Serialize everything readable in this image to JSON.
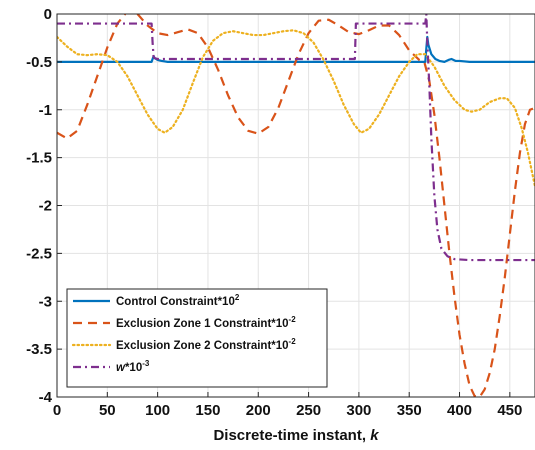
{
  "chart_data": {
    "type": "line",
    "title": "",
    "xlabel_main": "Discrete-time instant, ",
    "xlabel_var": "k",
    "ylabel": "",
    "xlim": [
      0,
      475
    ],
    "ylim": [
      -4,
      0
    ],
    "xticks": [
      0,
      50,
      100,
      150,
      200,
      250,
      300,
      350,
      400,
      450
    ],
    "yticks": [
      0,
      -0.5,
      -1,
      -1.5,
      -2,
      -2.5,
      -3,
      -3.5,
      -4
    ],
    "ytick_labels": [
      "0",
      "-0.5",
      "-1",
      "-1.5",
      "-2",
      "-2.5",
      "-3",
      "-3.5",
      "-4"
    ],
    "grid": true,
    "legend_position": "bottom-left",
    "series": [
      {
        "key": "control",
        "name_main": "Control Constraint*10",
        "name_sup": "2",
        "name_italic": "",
        "color": "#0072BD",
        "style": "solid",
        "points": [
          [
            0,
            -0.5
          ],
          [
            94,
            -0.5
          ],
          [
            95,
            -0.47
          ],
          [
            96,
            -0.44
          ],
          [
            97,
            -0.46
          ],
          [
            100,
            -0.48
          ],
          [
            104,
            -0.49
          ],
          [
            110,
            -0.5
          ],
          [
            366,
            -0.5
          ],
          [
            367,
            -0.36
          ],
          [
            368,
            -0.24
          ],
          [
            369,
            -0.32
          ],
          [
            372,
            -0.42
          ],
          [
            376,
            -0.47
          ],
          [
            380,
            -0.49
          ],
          [
            385,
            -0.5
          ],
          [
            389,
            -0.48
          ],
          [
            392,
            -0.47
          ],
          [
            396,
            -0.49
          ],
          [
            400,
            -0.49
          ],
          [
            410,
            -0.5
          ],
          [
            475,
            -0.5
          ]
        ]
      },
      {
        "key": "exclusion1",
        "name_main": "Exclusion Zone 1 Constraint*10",
        "name_sup": "-2",
        "name_italic": "",
        "color": "#D95319",
        "style": "dashed",
        "points": [
          [
            0,
            -1.24
          ],
          [
            10,
            -1.3
          ],
          [
            20,
            -1.22
          ],
          [
            30,
            -0.95
          ],
          [
            40,
            -0.65
          ],
          [
            50,
            -0.35
          ],
          [
            60,
            -0.1
          ],
          [
            70,
            0.03
          ],
          [
            80,
            0.0
          ],
          [
            90,
            -0.12
          ],
          [
            100,
            -0.2
          ],
          [
            110,
            -0.22
          ],
          [
            120,
            -0.19
          ],
          [
            130,
            -0.16
          ],
          [
            140,
            -0.2
          ],
          [
            150,
            -0.35
          ],
          [
            160,
            -0.58
          ],
          [
            170,
            -0.85
          ],
          [
            180,
            -1.08
          ],
          [
            190,
            -1.22
          ],
          [
            200,
            -1.25
          ],
          [
            210,
            -1.18
          ],
          [
            220,
            -0.98
          ],
          [
            230,
            -0.7
          ],
          [
            240,
            -0.42
          ],
          [
            250,
            -0.2
          ],
          [
            260,
            -0.07
          ],
          [
            270,
            -0.06
          ],
          [
            280,
            -0.12
          ],
          [
            290,
            -0.19
          ],
          [
            300,
            -0.21
          ],
          [
            310,
            -0.17
          ],
          [
            320,
            -0.12
          ],
          [
            330,
            -0.12
          ],
          [
            340,
            -0.22
          ],
          [
            350,
            -0.38
          ],
          [
            360,
            -0.48
          ],
          [
            365,
            -0.5
          ],
          [
            370,
            -0.7
          ],
          [
            375,
            -1.05
          ],
          [
            380,
            -1.5
          ],
          [
            385,
            -2.0
          ],
          [
            390,
            -2.5
          ],
          [
            395,
            -2.95
          ],
          [
            400,
            -3.35
          ],
          [
            405,
            -3.65
          ],
          [
            410,
            -3.88
          ],
          [
            415,
            -3.99
          ],
          [
            420,
            -4.0
          ],
          [
            425,
            -3.92
          ],
          [
            430,
            -3.75
          ],
          [
            435,
            -3.5
          ],
          [
            440,
            -3.15
          ],
          [
            445,
            -2.75
          ],
          [
            450,
            -2.3
          ],
          [
            455,
            -1.85
          ],
          [
            460,
            -1.45
          ],
          [
            465,
            -1.15
          ],
          [
            470,
            -1.0
          ],
          [
            475,
            -0.98
          ]
        ]
      },
      {
        "key": "exclusion2",
        "name_main": "Exclusion Zone 2 Constraint*10",
        "name_sup": "-2",
        "name_italic": "",
        "color": "#EDB120",
        "style": "dotted",
        "points": [
          [
            0,
            -0.24
          ],
          [
            10,
            -0.34
          ],
          [
            20,
            -0.42
          ],
          [
            30,
            -0.43
          ],
          [
            40,
            -0.42
          ],
          [
            50,
            -0.43
          ],
          [
            60,
            -0.5
          ],
          [
            70,
            -0.65
          ],
          [
            80,
            -0.85
          ],
          [
            90,
            -1.05
          ],
          [
            100,
            -1.2
          ],
          [
            107,
            -1.24
          ],
          [
            115,
            -1.18
          ],
          [
            125,
            -1.0
          ],
          [
            135,
            -0.72
          ],
          [
            145,
            -0.45
          ],
          [
            155,
            -0.28
          ],
          [
            165,
            -0.2
          ],
          [
            175,
            -0.18
          ],
          [
            185,
            -0.2
          ],
          [
            195,
            -0.22
          ],
          [
            205,
            -0.22
          ],
          [
            215,
            -0.2
          ],
          [
            225,
            -0.18
          ],
          [
            235,
            -0.17
          ],
          [
            245,
            -0.2
          ],
          [
            255,
            -0.3
          ],
          [
            265,
            -0.48
          ],
          [
            275,
            -0.7
          ],
          [
            285,
            -0.95
          ],
          [
            295,
            -1.15
          ],
          [
            302,
            -1.24
          ],
          [
            310,
            -1.2
          ],
          [
            320,
            -1.05
          ],
          [
            330,
            -0.85
          ],
          [
            340,
            -0.65
          ],
          [
            350,
            -0.5
          ],
          [
            358,
            -0.42
          ],
          [
            366,
            -0.42
          ],
          [
            375,
            -0.55
          ],
          [
            385,
            -0.75
          ],
          [
            395,
            -0.9
          ],
          [
            405,
            -1.0
          ],
          [
            412,
            -1.02
          ],
          [
            420,
            -1.0
          ],
          [
            430,
            -0.92
          ],
          [
            440,
            -0.88
          ],
          [
            447,
            -0.88
          ],
          [
            455,
            -0.98
          ],
          [
            462,
            -1.2
          ],
          [
            468,
            -1.45
          ],
          [
            472,
            -1.65
          ],
          [
            475,
            -1.8
          ]
        ]
      },
      {
        "key": "w",
        "name_main": "*10",
        "name_sup": "-3",
        "name_italic": "w",
        "color": "#7E2F8E",
        "style": "dashdot",
        "points": [
          [
            0,
            -0.1
          ],
          [
            94,
            -0.1
          ],
          [
            95,
            -0.3
          ],
          [
            96,
            -0.45
          ],
          [
            97,
            -0.46
          ],
          [
            100,
            -0.47
          ],
          [
            296,
            -0.47
          ],
          [
            297,
            -0.1
          ],
          [
            366,
            -0.1
          ],
          [
            367,
            0.0
          ],
          [
            368,
            -0.3
          ],
          [
            370,
            -0.75
          ],
          [
            372,
            -1.3
          ],
          [
            375,
            -1.9
          ],
          [
            378,
            -2.25
          ],
          [
            382,
            -2.45
          ],
          [
            388,
            -2.53
          ],
          [
            395,
            -2.56
          ],
          [
            410,
            -2.57
          ],
          [
            475,
            -2.57
          ]
        ]
      }
    ]
  }
}
